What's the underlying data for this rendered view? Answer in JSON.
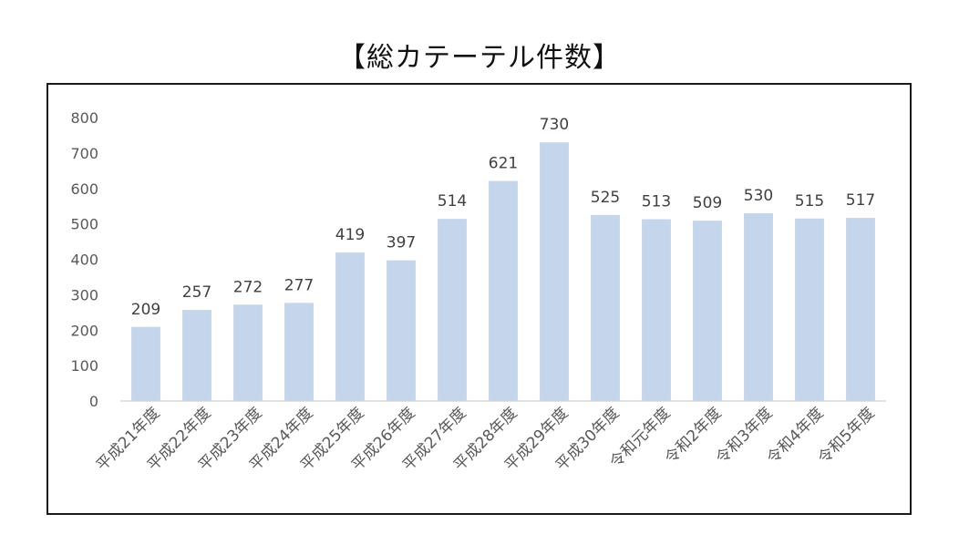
{
  "chart_data": {
    "type": "bar",
    "title": "【総カテーテル件数】",
    "categories": [
      "平成21年度",
      "平成22年度",
      "平成23年度",
      "平成24年度",
      "平成25年度",
      "平成26年度",
      "平成27年度",
      "平成28年度",
      "平成29年度",
      "平成30年度",
      "令和元年度",
      "令和2年度",
      "令和3年度",
      "令和4年度",
      "令和5年度"
    ],
    "values": [
      209,
      257,
      272,
      277,
      419,
      397,
      514,
      621,
      730,
      525,
      513,
      509,
      530,
      515,
      517
    ],
    "ylim": [
      0,
      800
    ],
    "yticks": [
      0,
      100,
      200,
      300,
      400,
      500,
      600,
      700,
      800
    ],
    "xlabel": "",
    "ylabel": "",
    "grid": false,
    "bar_color": "#c5d6ec",
    "axis_color": "#d9d9d9"
  }
}
